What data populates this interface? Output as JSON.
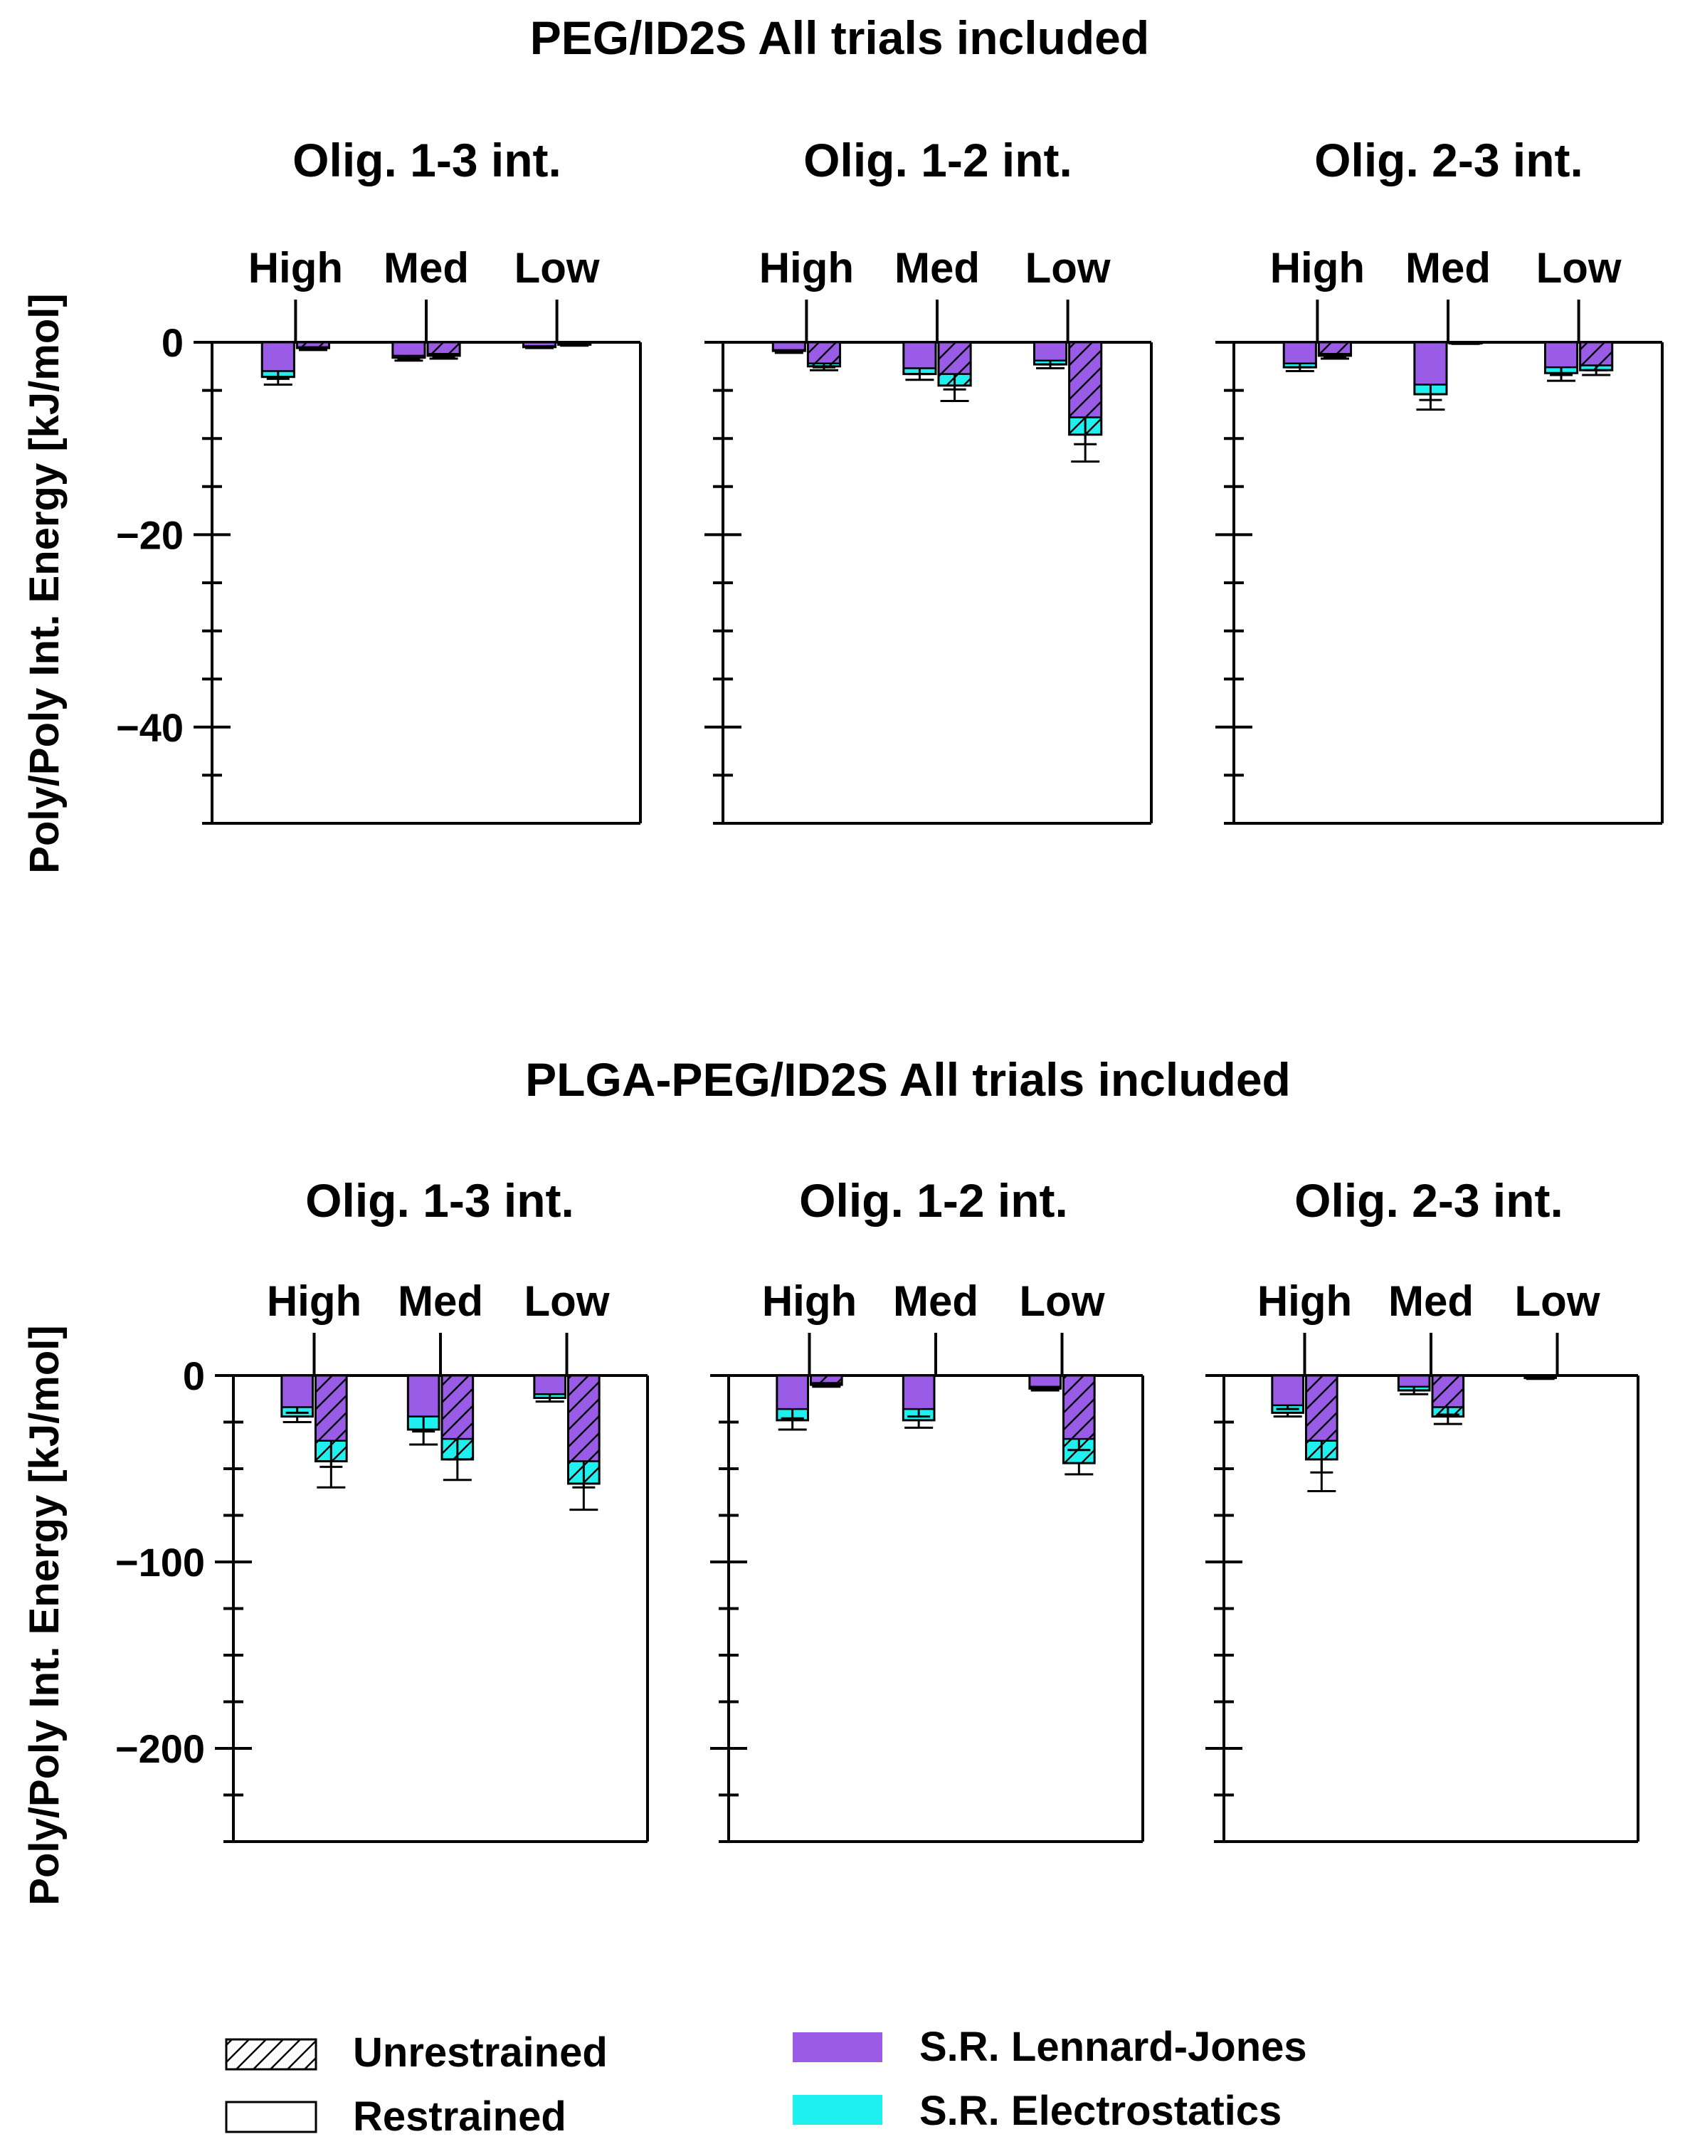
{
  "legend": {
    "items": [
      {
        "label": "Unrestrained",
        "kind": "hatch"
      },
      {
        "label": "Restrained",
        "kind": "open"
      },
      {
        "label": "S.R. Lennard-Jones",
        "kind": "color",
        "color": "#9a5ce6"
      },
      {
        "label": "S.R. Electrostatics",
        "kind": "color",
        "color": "#1ef0f0"
      }
    ]
  },
  "colors": {
    "lj": "#9a5ce6",
    "es": "#1ef0f0",
    "axis": "#000000"
  },
  "chart_data": [
    {
      "type": "bar",
      "stacked": true,
      "title": "PEG/ID2S All trials included",
      "ylabel": "Poly/Poly Int. Energy [kJ/mol]",
      "ylim": [
        -50,
        0
      ],
      "yticks": [
        0,
        -20,
        -40
      ],
      "ytick_labels": [
        "0",
        "−20",
        "−40"
      ],
      "categories": [
        "High",
        "Med",
        "Low"
      ],
      "series_order": [
        "Restrained",
        "Unrestrained"
      ],
      "panels": [
        {
          "title": "Olig. 1-3 int.",
          "bars": [
            {
              "cat": "High",
              "variant": "Restrained",
              "lj": -3.0,
              "es": -0.6,
              "err": 0.8
            },
            {
              "cat": "High",
              "variant": "Unrestrained",
              "lj": -0.5,
              "es": -0.1,
              "err": 0.2
            },
            {
              "cat": "Med",
              "variant": "Restrained",
              "lj": -1.4,
              "es": -0.2,
              "err": 0.3
            },
            {
              "cat": "Med",
              "variant": "Unrestrained",
              "lj": -1.2,
              "es": -0.2,
              "err": 0.3
            },
            {
              "cat": "Low",
              "variant": "Restrained",
              "lj": -0.4,
              "es": -0.1,
              "err": 0.1
            },
            {
              "cat": "Low",
              "variant": "Unrestrained",
              "lj": -0.2,
              "es": -0.05,
              "err": 0.1
            }
          ]
        },
        {
          "title": "Olig. 1-2 int.",
          "bars": [
            {
              "cat": "High",
              "variant": "Restrained",
              "lj": -0.8,
              "es": -0.1,
              "err": 0.2
            },
            {
              "cat": "High",
              "variant": "Unrestrained",
              "lj": -2.2,
              "es": -0.3,
              "err": 0.4
            },
            {
              "cat": "Med",
              "variant": "Restrained",
              "lj": -2.7,
              "es": -0.6,
              "err": 0.6
            },
            {
              "cat": "Med",
              "variant": "Unrestrained",
              "lj": -3.3,
              "es": -1.2,
              "err": 1.6
            },
            {
              "cat": "Low",
              "variant": "Restrained",
              "lj": -1.9,
              "es": -0.4,
              "err": 0.4
            },
            {
              "cat": "Low",
              "variant": "Unrestrained",
              "lj": -7.8,
              "es": -1.8,
              "err": 2.8
            }
          ]
        },
        {
          "title": "Olig. 2-3 int.",
          "bars": [
            {
              "cat": "High",
              "variant": "Restrained",
              "lj": -2.2,
              "es": -0.4,
              "err": 0.4
            },
            {
              "cat": "High",
              "variant": "Unrestrained",
              "lj": -1.2,
              "es": -0.2,
              "err": 0.3
            },
            {
              "cat": "Med",
              "variant": "Restrained",
              "lj": -4.4,
              "es": -1.0,
              "err": 1.6
            },
            {
              "cat": "Med",
              "variant": "Unrestrained",
              "lj": -0.1,
              "es": -0.02,
              "err": 0.05
            },
            {
              "cat": "Low",
              "variant": "Restrained",
              "lj": -2.6,
              "es": -0.6,
              "err": 0.8
            },
            {
              "cat": "Low",
              "variant": "Unrestrained",
              "lj": -2.4,
              "es": -0.5,
              "err": 0.5
            }
          ]
        }
      ]
    },
    {
      "type": "bar",
      "stacked": true,
      "title": "PLGA-PEG/ID2S All trials included",
      "ylabel": "Poly/Poly Int. Energy [kJ/mol]",
      "ylim": [
        -250,
        0
      ],
      "yticks": [
        0,
        -100,
        -200
      ],
      "ytick_labels": [
        "0",
        "−100",
        "−200"
      ],
      "categories": [
        "High",
        "Med",
        "Low"
      ],
      "series_order": [
        "Restrained",
        "Unrestrained"
      ],
      "panels": [
        {
          "title": "Olig. 1-3 int.",
          "bars": [
            {
              "cat": "High",
              "variant": "Restrained",
              "lj": -17,
              "es": -5,
              "err": 3
            },
            {
              "cat": "High",
              "variant": "Unrestrained",
              "lj": -35,
              "es": -11,
              "err": 14
            },
            {
              "cat": "Med",
              "variant": "Restrained",
              "lj": -22,
              "es": -7,
              "err": 8
            },
            {
              "cat": "Med",
              "variant": "Unrestrained",
              "lj": -34,
              "es": -11,
              "err": 11
            },
            {
              "cat": "Low",
              "variant": "Restrained",
              "lj": -10,
              "es": -2,
              "err": 2
            },
            {
              "cat": "Low",
              "variant": "Unrestrained",
              "lj": -46,
              "es": -12,
              "err": 14
            }
          ]
        },
        {
          "title": "Olig. 1-2 int.",
          "bars": [
            {
              "cat": "High",
              "variant": "Restrained",
              "lj": -18,
              "es": -6,
              "err": 5
            },
            {
              "cat": "High",
              "variant": "Unrestrained",
              "lj": -4,
              "es": -1,
              "err": 1
            },
            {
              "cat": "Med",
              "variant": "Restrained",
              "lj": -18,
              "es": -6,
              "err": 4
            },
            {
              "cat": "Med",
              "variant": "Unrestrained",
              "lj": 0,
              "es": 0,
              "err": 0
            },
            {
              "cat": "Low",
              "variant": "Restrained",
              "lj": -6,
              "es": -1,
              "err": 1
            },
            {
              "cat": "Low",
              "variant": "Unrestrained",
              "lj": -34,
              "es": -13,
              "err": 6
            }
          ]
        },
        {
          "title": "Olig. 2-3 int.",
          "bars": [
            {
              "cat": "High",
              "variant": "Restrained",
              "lj": -16,
              "es": -4,
              "err": 2
            },
            {
              "cat": "High",
              "variant": "Unrestrained",
              "lj": -35,
              "es": -10,
              "err": 17
            },
            {
              "cat": "Med",
              "variant": "Restrained",
              "lj": -6,
              "es": -2,
              "err": 2
            },
            {
              "cat": "Med",
              "variant": "Unrestrained",
              "lj": -17,
              "es": -5,
              "err": 4
            },
            {
              "cat": "Low",
              "variant": "Restrained",
              "lj": -1,
              "es": -0.3,
              "err": 0.5
            },
            {
              "cat": "Low",
              "variant": "Unrestrained",
              "lj": 0,
              "es": 0,
              "err": 0
            }
          ]
        }
      ]
    }
  ]
}
